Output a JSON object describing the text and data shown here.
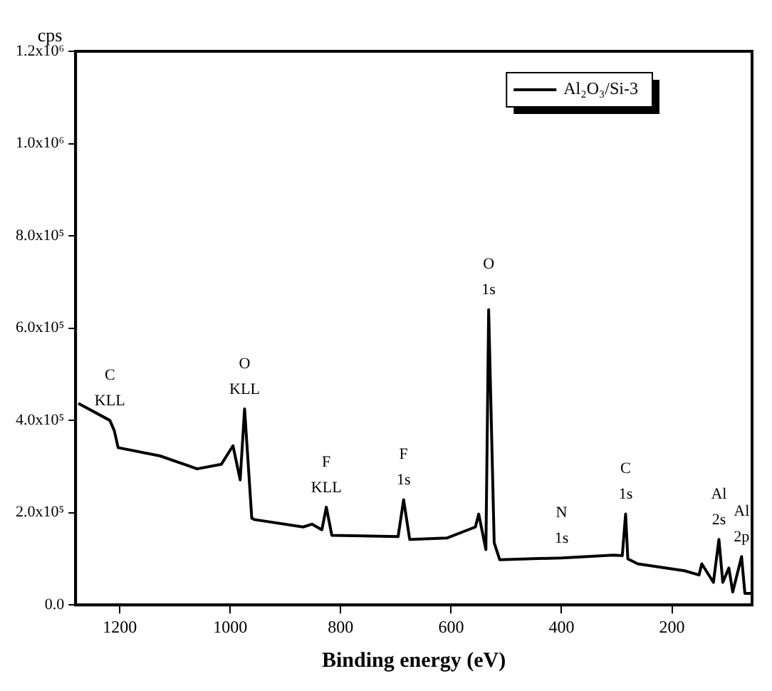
{
  "chart_data": {
    "type": "line",
    "xlabel": "Binding energy (eV)",
    "ylabel": "cps",
    "x": [
      1275,
      1218,
      1210,
      1203,
      1127,
      1060,
      1016,
      995,
      982,
      974,
      961,
      956,
      868,
      852,
      834,
      826,
      816,
      696,
      686,
      675,
      608,
      556,
      550,
      537,
      532,
      522,
      512,
      400,
      306,
      290,
      284,
      280,
      262,
      177,
      151,
      146,
      125,
      115,
      108,
      97,
      90,
      74,
      68,
      55
    ],
    "series": [
      {
        "name": "Al₂O₃/Si-3",
        "color": "#000000",
        "values": [
          437000,
          400000,
          378000,
          341000,
          323000,
          295000,
          305000,
          345000,
          271000,
          425000,
          188000,
          185000,
          169000,
          175000,
          163000,
          212000,
          151000,
          148000,
          228000,
          142000,
          145000,
          169000,
          197000,
          120000,
          640000,
          135000,
          98000,
          102000,
          108000,
          107000,
          197000,
          100000,
          89000,
          74000,
          65000,
          89000,
          49000,
          142000,
          49000,
          80000,
          28000,
          105000,
          25000,
          25000
        ]
      }
    ],
    "xlim": [
      1280,
      55
    ],
    "xticks": [
      1200,
      1000,
      800,
      600,
      400,
      200
    ],
    "ylim": [
      0,
      1200000
    ],
    "yticks": [
      {
        "value": 0,
        "label": "0.0"
      },
      {
        "value": 200000,
        "label": "2.0x10⁵"
      },
      {
        "value": 400000,
        "label": "4.0x10⁵"
      },
      {
        "value": 600000,
        "label": "6.0x10⁵"
      },
      {
        "value": 800000,
        "label": "8.0x10⁵"
      },
      {
        "value": 1000000,
        "label": "1.0x10⁶"
      },
      {
        "value": 1200000,
        "label": "1.2x10⁶"
      }
    ],
    "grid": false,
    "legend": "top right",
    "marker": "none",
    "line_style": "solid",
    "annotations": [
      {
        "text": "C KLL",
        "x": 1218,
        "y": 400000
      },
      {
        "text": "O KLL",
        "x": 974,
        "y": 425000
      },
      {
        "text": "F KLL",
        "x": 826,
        "y": 212000
      },
      {
        "text": "F 1s",
        "x": 686,
        "y": 228000
      },
      {
        "text": "O 1s",
        "x": 532,
        "y": 640000
      },
      {
        "text": "N 1s",
        "x": 400,
        "y": 102000
      },
      {
        "text": "C 1s",
        "x": 284,
        "y": 197000
      },
      {
        "text": "Al 2s",
        "x": 115,
        "y": 142000
      },
      {
        "text": "Al 2p",
        "x": 74,
        "y": 105000
      }
    ]
  }
}
